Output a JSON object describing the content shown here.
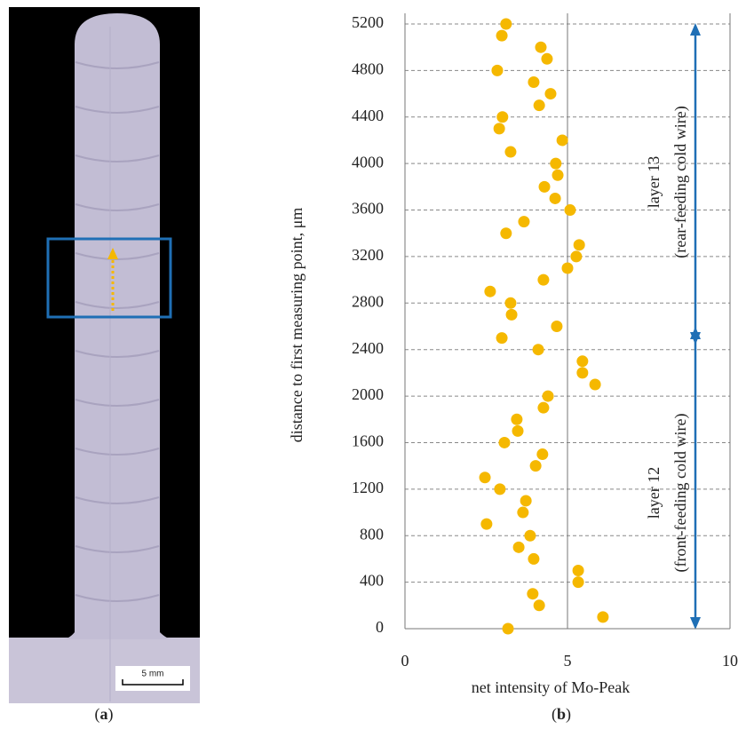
{
  "photo": {
    "scale_label": "5 mm",
    "caption": [
      "(",
      "a",
      ")"
    ]
  },
  "chart_data": {
    "type": "scatter",
    "caption": [
      "(",
      "b",
      ")"
    ],
    "xlabel": "net intensity of Mo-Peak",
    "ylabel": "distance to first measuring point, μm",
    "color": "#f5b800",
    "x": [
      3.17,
      6.09,
      4.13,
      3.93,
      5.33,
      5.33,
      3.96,
      3.5,
      3.85,
      2.51,
      3.63,
      3.72,
      2.92,
      2.46,
      4.02,
      4.23,
      3.06,
      3.47,
      3.44,
      4.26,
      4.4,
      5.85,
      5.46,
      5.46,
      4.1,
      2.98,
      4.67,
      3.28,
      3.25,
      2.62,
      4.26,
      5.0,
      5.27,
      5.36,
      3.11,
      3.66,
      5.08,
      4.62,
      4.29,
      4.7,
      4.64,
      3.25,
      4.84,
      2.9,
      3.0,
      4.13,
      4.48,
      3.96,
      2.84,
      4.37,
      4.18,
      2.98,
      3.11
    ],
    "values": [
      0,
      100,
      200,
      300,
      400,
      500,
      600,
      700,
      800,
      900,
      1000,
      1100,
      1200,
      1300,
      1400,
      1500,
      1600,
      1700,
      1800,
      1900,
      2000,
      2100,
      2200,
      2300,
      2400,
      2500,
      2600,
      2700,
      2800,
      2900,
      3000,
      3100,
      3200,
      3300,
      3400,
      3500,
      3600,
      3700,
      3800,
      3900,
      4000,
      4100,
      4200,
      4300,
      4400,
      4500,
      4600,
      4700,
      4800,
      4900,
      5000,
      5100,
      5200
    ],
    "xlim": [
      0,
      10
    ],
    "xticks": [
      0,
      5,
      10
    ],
    "ylim": [
      0,
      5200
    ],
    "yticks": [
      0,
      400,
      800,
      1200,
      1600,
      2000,
      2400,
      2800,
      3200,
      3600,
      4000,
      4400,
      4800,
      5200
    ],
    "xgrid": true,
    "ygrid": true,
    "annotations": [
      [
        "layer 13",
        "(rear-feeding cold wire)"
      ],
      [
        "layer 12",
        "(front-feeding cold wire)"
      ]
    ]
  }
}
